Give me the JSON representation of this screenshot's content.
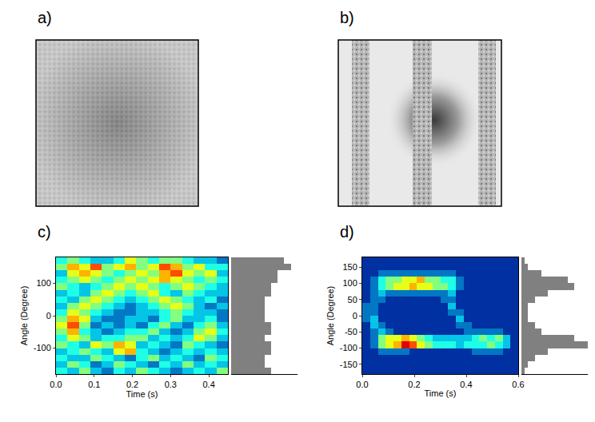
{
  "images": [
    {
      "panel": "a)"
    },
    {
      "panel": "b)"
    }
  ],
  "chart_data": [
    {
      "panel": "c)",
      "type": "heatmap",
      "x_label": "Time (s)",
      "y_label": "Angle (Degree)",
      "xlim": [
        0,
        0.45
      ],
      "ylim": [
        -180,
        180
      ],
      "xticks": [
        {
          "value": 0,
          "label": "0.0"
        },
        0.1,
        0.2,
        0.3,
        0.4
      ],
      "yticks": [
        -100,
        0,
        100
      ],
      "zlim": [
        0,
        10
      ],
      "x_bins": [
        0,
        0.03,
        0.06,
        0.09,
        0.12,
        0.15,
        0.18,
        0.21,
        0.24,
        0.27,
        0.3,
        0.33,
        0.36,
        0.39,
        0.42,
        0.45
      ],
      "y_bins": [
        -180,
        -160,
        -140,
        -120,
        -100,
        -80,
        -60,
        -40,
        -20,
        0,
        20,
        40,
        60,
        80,
        100,
        120,
        140,
        160,
        180
      ],
      "cells": [
        [
          4,
          3,
          5,
          3,
          2,
          4,
          3,
          5,
          4,
          3,
          2,
          3,
          4,
          3,
          5
        ],
        [
          3,
          5,
          4,
          2,
          3,
          5,
          4,
          3,
          2,
          4,
          3,
          5,
          3,
          4,
          3
        ],
        [
          4,
          3,
          3,
          5,
          4,
          3,
          2,
          4,
          5,
          3,
          4,
          3,
          2,
          5,
          4
        ],
        [
          3,
          4,
          5,
          4,
          3,
          6,
          7,
          4,
          3,
          2,
          3,
          4,
          3,
          4,
          3
        ],
        [
          5,
          4,
          3,
          6,
          5,
          7,
          6,
          3,
          4,
          3,
          2,
          5,
          4,
          3,
          2
        ],
        [
          4,
          6,
          5,
          3,
          4,
          4,
          5,
          5,
          3,
          4,
          3,
          4,
          6,
          5,
          3
        ],
        [
          5,
          7,
          4,
          3,
          2,
          3,
          4,
          4,
          5,
          3,
          2,
          3,
          5,
          6,
          4
        ],
        [
          6,
          8,
          5,
          2,
          3,
          2,
          3,
          2,
          4,
          5,
          3,
          2,
          4,
          5,
          3
        ],
        [
          5,
          7,
          6,
          3,
          2,
          2,
          3,
          3,
          2,
          4,
          5,
          3,
          3,
          4,
          2
        ],
        [
          4,
          6,
          5,
          4,
          3,
          2,
          2,
          3,
          3,
          4,
          5,
          4,
          3,
          3,
          2
        ],
        [
          3,
          5,
          6,
          5,
          4,
          3,
          2,
          3,
          4,
          5,
          6,
          5,
          3,
          2,
          3
        ],
        [
          4,
          3,
          5,
          6,
          5,
          4,
          3,
          4,
          5,
          6,
          5,
          4,
          3,
          4,
          2
        ],
        [
          3,
          4,
          3,
          5,
          6,
          5,
          4,
          5,
          6,
          4,
          3,
          5,
          4,
          3,
          3
        ],
        [
          5,
          4,
          3,
          4,
          5,
          6,
          5,
          6,
          5,
          4,
          5,
          6,
          5,
          4,
          3
        ],
        [
          4,
          5,
          6,
          5,
          4,
          5,
          6,
          5,
          6,
          7,
          6,
          5,
          4,
          5,
          4
        ],
        [
          3,
          6,
          7,
          6,
          5,
          4,
          5,
          6,
          5,
          7,
          8,
          6,
          5,
          6,
          3
        ],
        [
          5,
          7,
          6,
          8,
          5,
          6,
          7,
          5,
          6,
          8,
          7,
          5,
          6,
          4,
          4
        ],
        [
          4,
          5,
          4,
          3,
          3,
          4,
          6,
          5,
          4,
          5,
          5,
          4,
          3,
          3,
          2
        ]
      ],
      "histogram": {
        "type": "bar",
        "orientation": "horizontal",
        "color": "#808080",
        "tick_labels": false,
        "xlim": [
          0,
          10
        ],
        "counts": [
          6,
          5,
          5,
          6,
          6,
          5,
          6,
          6,
          5,
          5,
          5,
          5,
          6,
          6,
          7,
          7,
          9,
          8
        ]
      }
    },
    {
      "panel": "d)",
      "type": "heatmap",
      "x_label": "Time (s)",
      "y_label": "Angle (Degree)",
      "xlim": [
        0,
        0.6
      ],
      "ylim": [
        -180,
        180
      ],
      "xticks": [
        {
          "value": 0,
          "label": "0.0"
        },
        0.2,
        0.4,
        0.6
      ],
      "yticks": [
        -150,
        -100,
        -50,
        0,
        50,
        100,
        150
      ],
      "zlim": [
        0,
        10
      ],
      "x_bins": [
        0,
        0.03,
        0.06,
        0.09,
        0.12,
        0.15,
        0.18,
        0.21,
        0.24,
        0.27,
        0.3,
        0.33,
        0.36,
        0.39,
        0.42,
        0.45,
        0.48,
        0.51,
        0.54,
        0.57,
        0.6
      ],
      "y_bins": [
        -180,
        -160,
        -140,
        -120,
        -100,
        -80,
        -60,
        -40,
        -20,
        0,
        20,
        40,
        60,
        80,
        100,
        120,
        140,
        160,
        180
      ],
      "cells": [
        [
          1,
          1,
          1,
          1,
          1,
          1,
          1,
          1,
          1,
          1,
          1,
          1,
          1,
          1,
          1,
          1,
          1,
          1,
          1,
          1
        ],
        [
          1,
          1,
          1,
          1,
          1,
          1,
          1,
          1,
          1,
          1,
          1,
          1,
          1,
          1,
          1,
          1,
          1,
          1,
          1,
          1
        ],
        [
          1,
          1,
          1,
          1,
          1,
          1,
          1,
          1,
          1,
          1,
          1,
          1,
          1,
          1,
          1,
          1,
          1,
          1,
          1,
          1
        ],
        [
          1,
          1,
          2,
          2,
          2,
          2,
          1,
          1,
          1,
          1,
          1,
          1,
          1,
          1,
          2,
          2,
          2,
          2,
          1,
          1
        ],
        [
          1,
          2,
          5,
          6,
          7,
          9,
          8,
          6,
          5,
          4,
          4,
          4,
          3,
          4,
          4,
          4,
          5,
          4,
          3,
          1
        ],
        [
          1,
          2,
          5,
          6,
          6,
          7,
          6,
          5,
          4,
          3,
          3,
          3,
          3,
          3,
          4,
          5,
          4,
          5,
          3,
          1
        ],
        [
          1,
          2,
          3,
          2,
          1,
          1,
          1,
          1,
          1,
          1,
          1,
          1,
          1,
          2,
          2,
          2,
          2,
          2,
          1,
          1
        ],
        [
          1,
          3,
          2,
          1,
          1,
          1,
          1,
          1,
          1,
          1,
          1,
          1,
          2,
          2,
          1,
          1,
          1,
          1,
          1,
          1
        ],
        [
          2,
          3,
          1,
          1,
          1,
          1,
          1,
          1,
          1,
          1,
          1,
          1,
          3,
          1,
          1,
          1,
          1,
          1,
          1,
          1
        ],
        [
          2,
          2,
          1,
          1,
          1,
          1,
          1,
          1,
          1,
          1,
          1,
          2,
          2,
          1,
          1,
          1,
          1,
          1,
          1,
          1
        ],
        [
          2,
          2,
          1,
          1,
          1,
          1,
          1,
          1,
          1,
          1,
          1,
          3,
          1,
          1,
          1,
          1,
          1,
          1,
          1,
          1
        ],
        [
          1,
          2,
          2,
          1,
          1,
          1,
          1,
          1,
          1,
          1,
          2,
          2,
          1,
          1,
          1,
          1,
          1,
          1,
          1,
          1
        ],
        [
          1,
          2,
          3,
          2,
          2,
          2,
          2,
          2,
          2,
          2,
          2,
          3,
          1,
          1,
          1,
          1,
          1,
          1,
          1,
          1
        ],
        [
          1,
          2,
          4,
          5,
          6,
          6,
          7,
          6,
          6,
          5,
          5,
          4,
          2,
          1,
          1,
          1,
          1,
          1,
          1,
          1
        ],
        [
          1,
          2,
          4,
          5,
          5,
          6,
          6,
          7,
          5,
          5,
          4,
          4,
          2,
          1,
          1,
          1,
          1,
          1,
          1,
          1
        ],
        [
          1,
          1,
          2,
          2,
          2,
          2,
          2,
          2,
          2,
          2,
          2,
          2,
          1,
          1,
          1,
          1,
          1,
          1,
          1,
          1
        ],
        [
          1,
          1,
          1,
          1,
          1,
          1,
          1,
          1,
          1,
          1,
          1,
          1,
          1,
          1,
          1,
          1,
          1,
          1,
          1,
          1
        ],
        [
          1,
          1,
          1,
          1,
          1,
          1,
          1,
          1,
          1,
          1,
          1,
          1,
          1,
          1,
          1,
          1,
          1,
          1,
          1,
          1
        ]
      ],
      "histogram": {
        "type": "bar",
        "orientation": "horizontal",
        "color": "#808080",
        "tick_labels": false,
        "xlim": [
          0,
          10
        ],
        "counts": [
          0.5,
          1,
          2,
          4,
          10,
          8,
          3,
          2,
          1,
          1,
          1,
          2,
          4,
          8,
          7,
          3,
          1,
          0.5
        ]
      }
    }
  ]
}
